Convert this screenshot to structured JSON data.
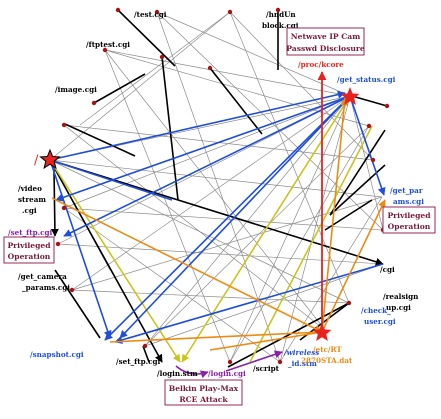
{
  "labels": {
    "test": "/test.cgi",
    "hndun1": "/hndUn",
    "hndun2": "block.cgi",
    "ftptest": "/ftptest.cgi",
    "image": "/image.cgi",
    "root": "/",
    "video1": "/video",
    "video2": "stream",
    "video3": ".cgi",
    "setftp_left": "/set_ftp.cgi",
    "getcam1": "/get_camera",
    "getcam2": "_params.cgi",
    "snapshot": "/snapshot.cgi",
    "setftp_bottom": "/set_ftp.cgi",
    "login_stm": "/login.stm",
    "login_cgi": "/login.cgi",
    "script": "/script",
    "wireless1": "/wireless",
    "wireless2": "_id.stm",
    "proc_kcore": "/proc/kcore",
    "get_status": "/get_status.cgi",
    "getpar1": "/get_par",
    "getpar2": "ams.cgi",
    "cgi": "/cgi",
    "realsign1": "/realsign",
    "realsign2": "up.cgi",
    "check1": "/check_",
    "check2": "user.cgi",
    "etc1": "/etc/RT",
    "etc2": "2870STA.dat"
  },
  "callouts": {
    "netwave1": "Netwave IP Cam",
    "netwave2": "Passwd Disclosure",
    "priv_right1": "Privileged",
    "priv_right2": "Operation",
    "priv_left1": "Privileged",
    "priv_left2": "Operation",
    "belkin1": "Belkin Play-Max",
    "belkin2": "RCE Attack"
  },
  "colors": {
    "blue": "#1f4fd8",
    "orange": "#ee8a12",
    "olive": "#c9c420",
    "red": "#e8231d",
    "purple": "#8a1fa8",
    "black": "#000000",
    "gray": "#8a8a8a",
    "node": "#a31515",
    "callout_text": "#7a1a3a",
    "callout_border": "#9a2a5a"
  }
}
